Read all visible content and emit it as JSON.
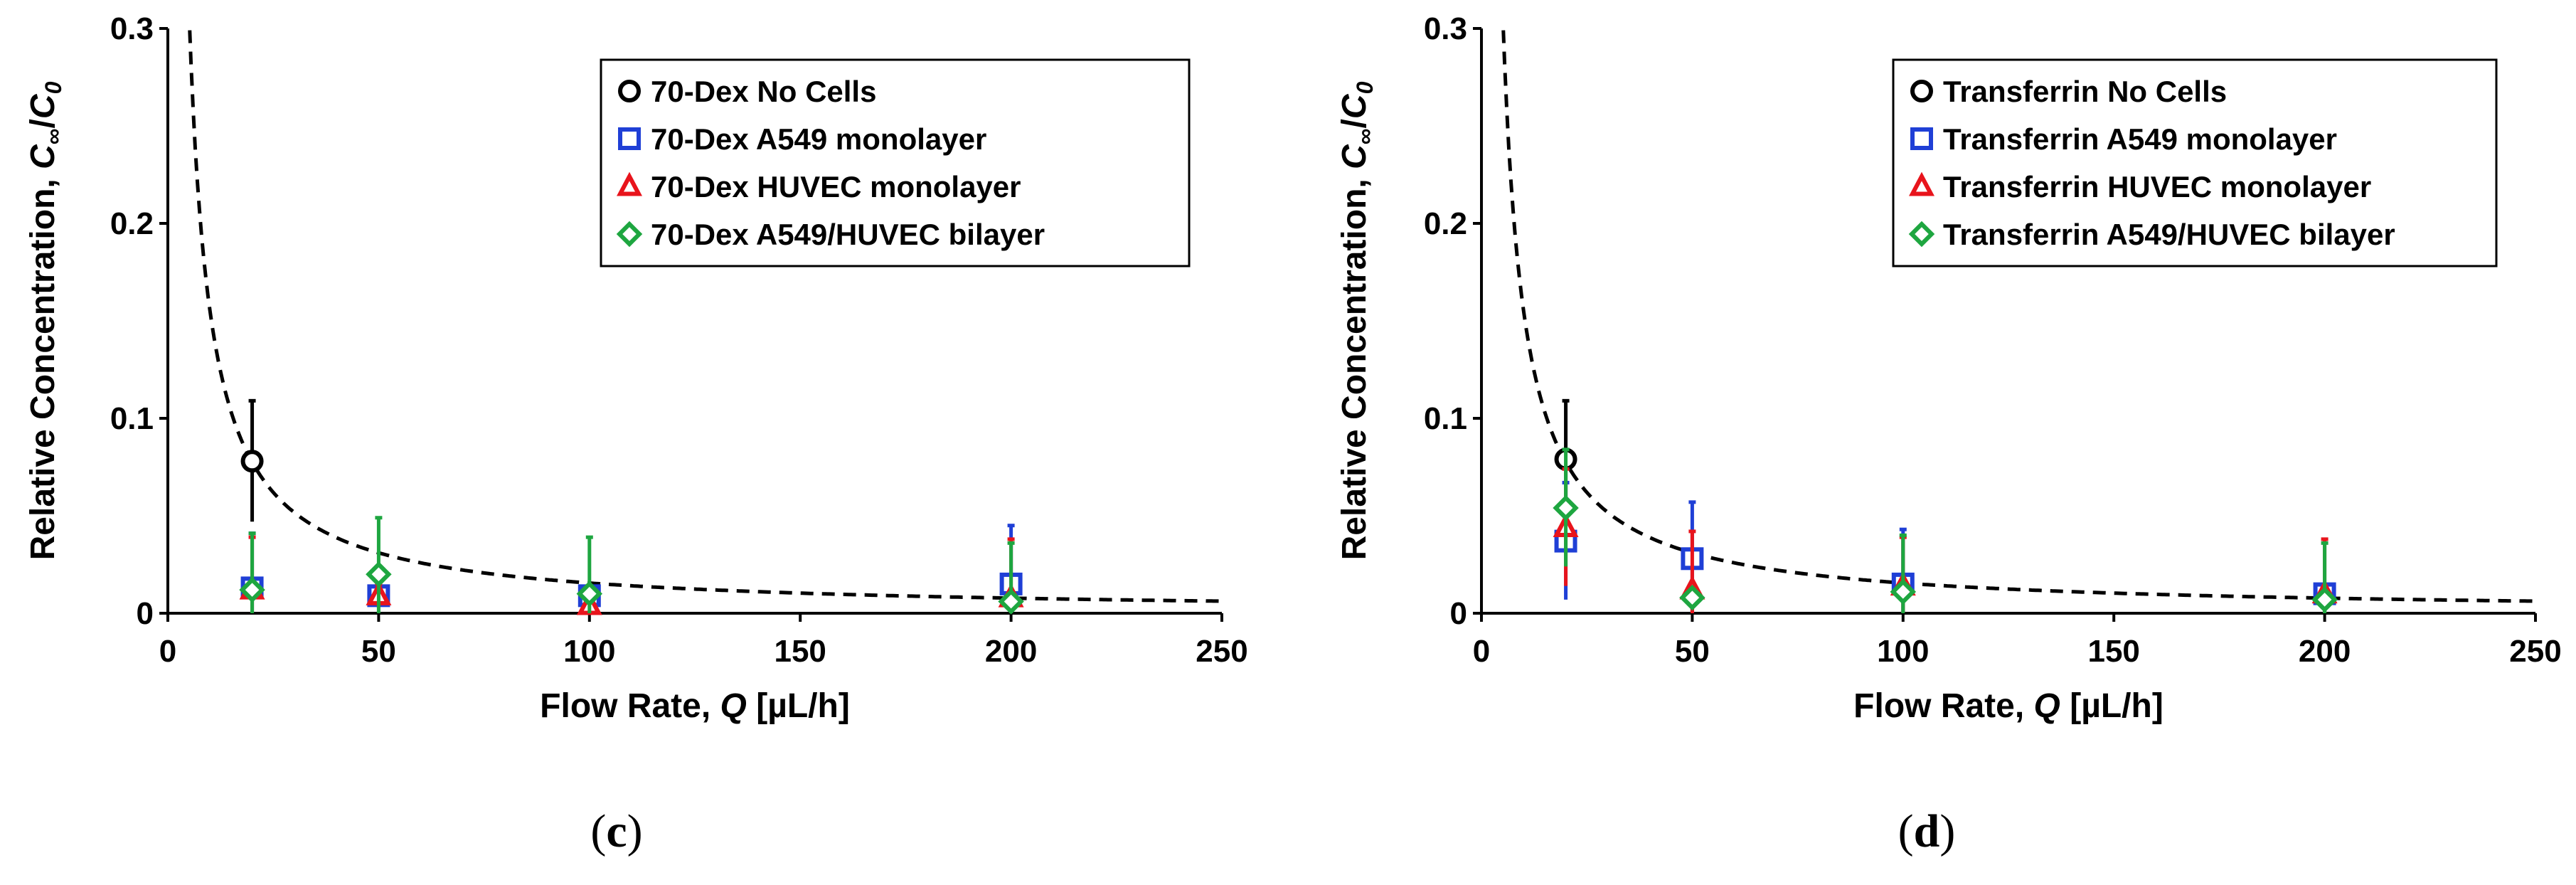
{
  "figure": {
    "panels": [
      "c",
      "d"
    ]
  },
  "chart_data": [
    {
      "panel_label": "(c)",
      "label_open": "(",
      "label_letter": "c",
      "label_close": ")",
      "type": "scatter",
      "xlabel": "Flow Rate, ",
      "xlabel_var": "Q",
      "xlabel_unit": " [µL/h]",
      "ylabel": "Relative Concentration, ",
      "ylabel_var_c": "C",
      "ylabel_inf": "∞",
      "ylabel_slash": "/",
      "ylabel_c0": "C",
      "ylabel_zero": "0",
      "xlim": [
        0,
        250
      ],
      "ylim": [
        0,
        0.3
      ],
      "xticks": [
        0,
        50,
        100,
        150,
        200,
        250
      ],
      "xtick_labels": [
        "0",
        "50",
        "100",
        "150",
        "200",
        "250"
      ],
      "yticks": [
        0,
        0.1,
        0.2,
        0.3
      ],
      "ytick_labels": [
        "0",
        "0.1",
        "0.2",
        "0.3"
      ],
      "legend_position": "top-right",
      "fit_curve": {
        "style": "dashed",
        "color": "#000000",
        "k": 1.55,
        "x_start": 5,
        "x_end": 250
      },
      "series": [
        {
          "name": "70-Dex No Cells",
          "marker": "circle",
          "color": "#000000",
          "x": [
            20
          ],
          "y": [
            0.078
          ],
          "err": [
            0.031
          ]
        },
        {
          "name": "70-Dex A549 monolayer",
          "marker": "square",
          "color": "#1f3fd6",
          "x": [
            20,
            50,
            100,
            200
          ],
          "y": [
            0.013,
            0.009,
            0.009,
            0.015
          ],
          "err": [
            0.028,
            0.006,
            0.005,
            0.03
          ]
        },
        {
          "name": "70-Dex HUVEC monolayer",
          "marker": "triangle",
          "color": "#e8141c",
          "x": [
            20,
            50,
            100,
            200
          ],
          "y": [
            0.012,
            0.009,
            0.004,
            0.008
          ],
          "err": [
            0.027,
            0.006,
            0.006,
            0.03
          ]
        },
        {
          "name": "70-Dex A549/HUVEC bilayer",
          "marker": "diamond",
          "color": "#1ea640",
          "x": [
            20,
            50,
            100,
            200
          ],
          "y": [
            0.012,
            0.02,
            0.01,
            0.006
          ],
          "err": [
            0.029,
            0.029,
            0.029,
            0.03
          ]
        }
      ]
    },
    {
      "panel_label": "(d)",
      "label_open": "(",
      "label_letter": "d",
      "label_close": ")",
      "type": "scatter",
      "xlabel": "Flow Rate, ",
      "xlabel_var": "Q",
      "xlabel_unit": " [µL/h]",
      "ylabel": "Relative Concentration, ",
      "ylabel_var_c": "C",
      "ylabel_inf": "∞",
      "ylabel_slash": "/",
      "ylabel_c0": "C",
      "ylabel_zero": "0",
      "xlim": [
        0,
        250
      ],
      "ylim": [
        0,
        0.3
      ],
      "xticks": [
        0,
        50,
        100,
        150,
        200,
        250
      ],
      "xtick_labels": [
        "0",
        "50",
        "100",
        "150",
        "200",
        "250"
      ],
      "yticks": [
        0,
        0.1,
        0.2,
        0.3
      ],
      "ytick_labels": [
        "0",
        "0.1",
        "0.2",
        "0.3"
      ],
      "legend_position": "top-right",
      "fit_curve": {
        "style": "dashed",
        "color": "#000000",
        "k": 1.55,
        "x_start": 5,
        "x_end": 250
      },
      "series": [
        {
          "name": "Transferrin No Cells",
          "marker": "circle",
          "color": "#000000",
          "x": [
            20
          ],
          "y": [
            0.079
          ],
          "err": [
            0.03
          ]
        },
        {
          "name": "Transferrin A549 monolayer",
          "marker": "square",
          "color": "#1f3fd6",
          "x": [
            20,
            50,
            100,
            200
          ],
          "y": [
            0.037,
            0.028,
            0.015,
            0.01
          ],
          "err": [
            0.03,
            0.029,
            0.028,
            0.004
          ]
        },
        {
          "name": "Transferrin HUVEC monolayer",
          "marker": "triangle",
          "color": "#e8141c",
          "x": [
            20,
            50,
            100,
            200
          ],
          "y": [
            0.044,
            0.012,
            0.014,
            0.01
          ],
          "err": [
            0.03,
            0.03,
            0.025,
            0.028
          ]
        },
        {
          "name": "Transferrin A549/HUVEC bilayer",
          "marker": "diamond",
          "color": "#1ea640",
          "x": [
            20,
            50,
            100,
            200
          ],
          "y": [
            0.054,
            0.008,
            0.011,
            0.007
          ],
          "err": [
            0.03,
            0.004,
            0.029,
            0.029
          ]
        }
      ]
    }
  ]
}
